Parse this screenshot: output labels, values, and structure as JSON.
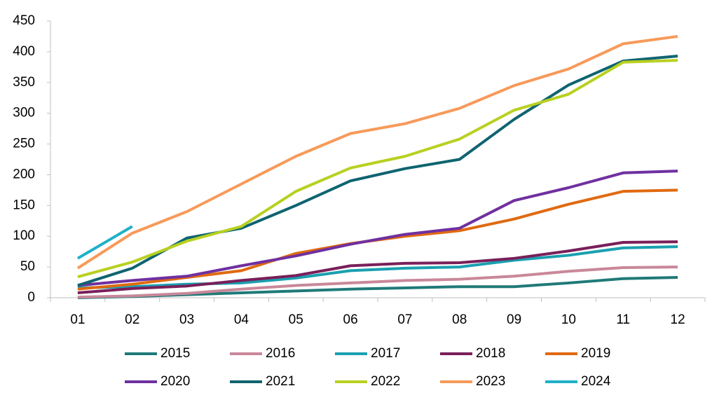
{
  "chart_data": {
    "type": "line",
    "categories": [
      "01",
      "02",
      "03",
      "04",
      "05",
      "06",
      "07",
      "08",
      "09",
      "10",
      "11",
      "12"
    ],
    "series": [
      {
        "name": "2015",
        "color": "#1f7a78",
        "values": [
          0,
          2,
          5,
          8,
          11,
          14,
          16,
          18,
          18,
          24,
          31,
          33
        ]
      },
      {
        "name": "2016",
        "color": "#c9889a",
        "values": [
          1,
          3,
          7,
          14,
          20,
          24,
          28,
          30,
          35,
          43,
          49,
          50
        ]
      },
      {
        "name": "2017",
        "color": "#1aa0b0",
        "values": [
          16,
          18,
          22,
          24,
          32,
          44,
          48,
          50,
          61,
          69,
          81,
          83
        ]
      },
      {
        "name": "2018",
        "color": "#7a1f5a",
        "values": [
          8,
          15,
          19,
          28,
          36,
          52,
          56,
          57,
          64,
          76,
          90,
          91
        ]
      },
      {
        "name": "2019",
        "color": "#e06a10",
        "values": [
          14,
          22,
          33,
          44,
          72,
          88,
          100,
          109,
          128,
          152,
          173,
          175
        ]
      },
      {
        "name": "2020",
        "color": "#7030a0",
        "values": [
          20,
          28,
          35,
          52,
          68,
          87,
          103,
          113,
          158,
          179,
          203,
          206
        ]
      },
      {
        "name": "2021",
        "color": "#0e6470",
        "values": [
          20,
          48,
          97,
          113,
          150,
          190,
          210,
          225,
          290,
          346,
          385,
          393
        ]
      },
      {
        "name": "2022",
        "color": "#b8d020",
        "values": [
          34,
          58,
          92,
          116,
          173,
          211,
          230,
          258,
          305,
          331,
          383,
          386
        ]
      },
      {
        "name": "2023",
        "color": "#f79a5a",
        "values": [
          48,
          105,
          140,
          185,
          230,
          267,
          283,
          308,
          345,
          372,
          413,
          425
        ]
      },
      {
        "name": "2024",
        "color": "#20b0c8",
        "values": [
          64,
          116,
          null,
          null,
          null,
          null,
          null,
          null,
          null,
          null,
          null,
          null
        ]
      }
    ],
    "ylim": [
      0,
      450
    ],
    "yticks": [
      0,
      50,
      100,
      150,
      200,
      250,
      300,
      350,
      400,
      450
    ],
    "grid": false
  }
}
